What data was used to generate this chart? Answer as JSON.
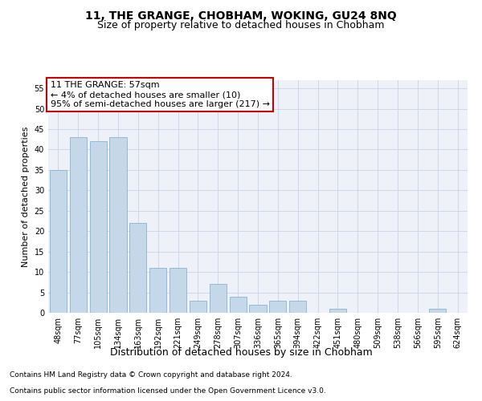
{
  "title": "11, THE GRANGE, CHOBHAM, WOKING, GU24 8NQ",
  "subtitle": "Size of property relative to detached houses in Chobham",
  "xlabel": "Distribution of detached houses by size in Chobham",
  "ylabel": "Number of detached properties",
  "categories": [
    "48sqm",
    "77sqm",
    "105sqm",
    "134sqm",
    "163sqm",
    "192sqm",
    "221sqm",
    "249sqm",
    "278sqm",
    "307sqm",
    "336sqm",
    "365sqm",
    "394sqm",
    "422sqm",
    "451sqm",
    "480sqm",
    "509sqm",
    "538sqm",
    "566sqm",
    "595sqm",
    "624sqm"
  ],
  "values": [
    35,
    43,
    42,
    43,
    22,
    11,
    11,
    3,
    7,
    4,
    2,
    3,
    3,
    0,
    1,
    0,
    0,
    0,
    0,
    1,
    0
  ],
  "bar_color": "#c5d8ea",
  "bar_edge_color": "#7aaac8",
  "annotation_box_color": "#ffffff",
  "annotation_border_color": "#cc0000",
  "annotation_line1": "11 THE GRANGE: 57sqm",
  "annotation_line2": "← 4% of detached houses are smaller (10)",
  "annotation_line3": "95% of semi-detached houses are larger (217) →",
  "ylim": [
    0,
    57
  ],
  "yticks": [
    0,
    5,
    10,
    15,
    20,
    25,
    30,
    35,
    40,
    45,
    50,
    55
  ],
  "grid_color": "#c8d4e8",
  "bg_color": "#eef2f8",
  "footer1": "Contains HM Land Registry data © Crown copyright and database right 2024.",
  "footer2": "Contains public sector information licensed under the Open Government Licence v3.0.",
  "title_fontsize": 10,
  "subtitle_fontsize": 9,
  "ylabel_fontsize": 8,
  "xlabel_fontsize": 9,
  "tick_fontsize": 7,
  "annotation_fontsize": 8,
  "footer_fontsize": 6.5
}
